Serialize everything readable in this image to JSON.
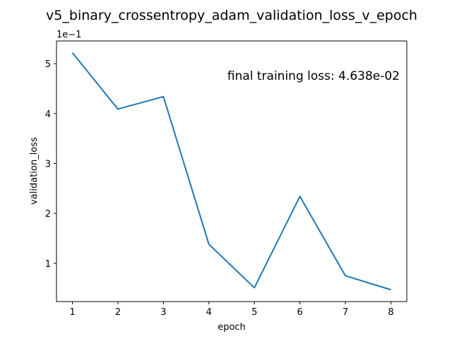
{
  "chart_data": {
    "type": "line",
    "title": "v5_binary_crossentropy_adam_validation_loss_v_epoch",
    "xlabel": "epoch",
    "ylabel": "validation_loss",
    "y_offset_label": "1e−1",
    "annotation": "final training loss: 4.638e-02",
    "x": [
      1,
      2,
      3,
      4,
      5,
      6,
      7,
      8
    ],
    "series": [
      {
        "values": [
          0.522,
          0.409,
          0.434,
          0.138,
          0.051,
          0.234,
          0.075,
          0.047
        ]
      }
    ],
    "xlim": [
      0.65,
      8.35
    ],
    "ylim": [
      0.0233,
      0.5455
    ],
    "x_ticks": [
      1,
      2,
      3,
      4,
      5,
      6,
      7,
      8
    ],
    "x_tick_labels": [
      "1",
      "2",
      "3",
      "4",
      "5",
      "6",
      "7",
      "8"
    ],
    "y_ticks": [
      0.1,
      0.2,
      0.3,
      0.4,
      0.5
    ],
    "y_tick_labels": [
      "1",
      "2",
      "3",
      "4",
      "5"
    ],
    "grid": false,
    "line_color": "#1f77b4"
  }
}
